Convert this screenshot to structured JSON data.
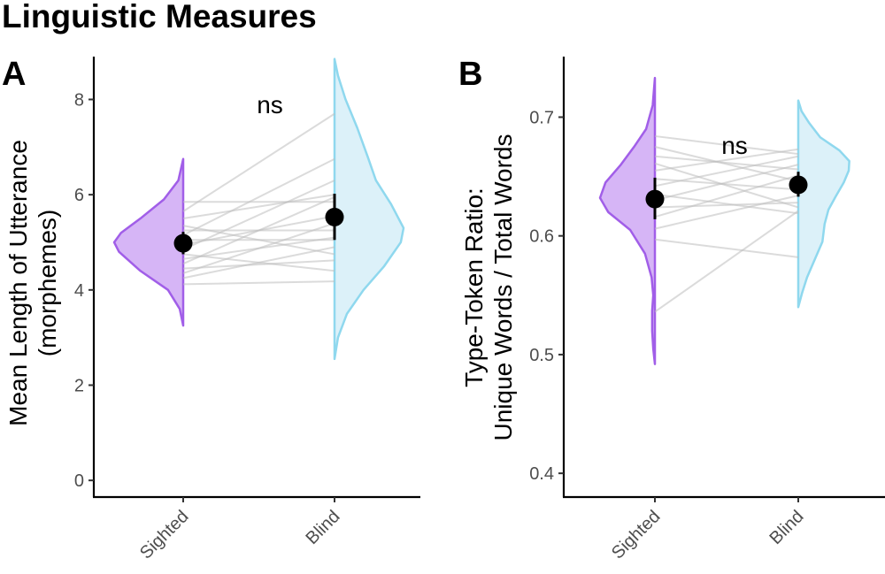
{
  "title": "Linguistic Measures",
  "colors": {
    "sighted_fill": "#cfa8f5",
    "sighted_line": "#a15ee8",
    "blind_fill": "#d6eff8",
    "blind_line": "#8fd8ee",
    "paired_line": "#bdbdbd",
    "point": "#000000"
  },
  "chart_data": [
    {
      "panel": "A",
      "type": "raincloud",
      "ylabel_lines": [
        "Mean Length of Utterance",
        "(morphemes)"
      ],
      "categories": [
        "Sighted",
        "Blind"
      ],
      "ylim": [
        -0.35,
        8.9
      ],
      "yticks": [
        0,
        2,
        4,
        6,
        8
      ],
      "tick_labels": [
        "0",
        "2",
        "4",
        "6",
        "8"
      ],
      "annotation": "ns",
      "means": [
        4.98,
        5.53
      ],
      "ci": [
        [
          4.75,
          5.22
        ],
        [
          5.05,
          6.02
        ]
      ],
      "pairs": [
        [
          4.12,
          4.18
        ],
        [
          4.25,
          4.9
        ],
        [
          4.35,
          5.4
        ],
        [
          4.45,
          4.62
        ],
        [
          4.55,
          5.95
        ],
        [
          4.65,
          5.1
        ],
        [
          4.75,
          4.4
        ],
        [
          4.85,
          6.3
        ],
        [
          4.95,
          5.55
        ],
        [
          5.05,
          5.05
        ],
        [
          5.15,
          6.75
        ],
        [
          5.25,
          5.25
        ],
        [
          5.35,
          4.75
        ],
        [
          5.5,
          6.0
        ],
        [
          5.65,
          7.7
        ],
        [
          5.85,
          5.85
        ]
      ],
      "density_sighted": [
        [
          3.25,
          0
        ],
        [
          3.6,
          0.05
        ],
        [
          4.0,
          0.22
        ],
        [
          4.4,
          0.62
        ],
        [
          4.8,
          0.93
        ],
        [
          5.0,
          1.0
        ],
        [
          5.2,
          0.9
        ],
        [
          5.5,
          0.62
        ],
        [
          5.9,
          0.28
        ],
        [
          6.3,
          0.07
        ],
        [
          6.75,
          0
        ]
      ],
      "density_blind": [
        [
          2.55,
          0
        ],
        [
          3.0,
          0.05
        ],
        [
          3.5,
          0.18
        ],
        [
          4.0,
          0.42
        ],
        [
          4.5,
          0.72
        ],
        [
          5.0,
          0.96
        ],
        [
          5.3,
          1.0
        ],
        [
          5.8,
          0.82
        ],
        [
          6.3,
          0.6
        ],
        [
          6.8,
          0.48
        ],
        [
          7.4,
          0.33
        ],
        [
          8.0,
          0.16
        ],
        [
          8.5,
          0.05
        ],
        [
          8.85,
          0
        ]
      ]
    },
    {
      "panel": "B",
      "type": "raincloud",
      "ylabel_lines": [
        "Type-Token Ratio:",
        "Unique Words / Total Words"
      ],
      "categories": [
        "Sighted",
        "Blind"
      ],
      "ylim": [
        0.38,
        0.751
      ],
      "yticks": [
        0.4,
        0.5,
        0.6,
        0.7
      ],
      "tick_labels": [
        "0.4",
        "0.5",
        "0.6",
        "0.7"
      ],
      "annotation": "ns",
      "means": [
        0.631,
        0.643
      ],
      "ci": [
        [
          0.614,
          0.649
        ],
        [
          0.633,
          0.654
        ]
      ],
      "pairs": [
        [
          0.536,
          0.621
        ],
        [
          0.597,
          0.582
        ],
        [
          0.606,
          0.634
        ],
        [
          0.616,
          0.651
        ],
        [
          0.624,
          0.628
        ],
        [
          0.63,
          0.66
        ],
        [
          0.635,
          0.619
        ],
        [
          0.642,
          0.667
        ],
        [
          0.648,
          0.639
        ],
        [
          0.655,
          0.673
        ],
        [
          0.661,
          0.624
        ],
        [
          0.667,
          0.656
        ],
        [
          0.675,
          0.646
        ],
        [
          0.684,
          0.669
        ]
      ],
      "density_sighted": [
        [
          0.492,
          0
        ],
        [
          0.505,
          0.03
        ],
        [
          0.52,
          0.05
        ],
        [
          0.537,
          0.05
        ],
        [
          0.55,
          0.03
        ],
        [
          0.565,
          0.06
        ],
        [
          0.585,
          0.18
        ],
        [
          0.605,
          0.45
        ],
        [
          0.62,
          0.85
        ],
        [
          0.632,
          1.0
        ],
        [
          0.645,
          0.9
        ],
        [
          0.66,
          0.62
        ],
        [
          0.675,
          0.38
        ],
        [
          0.69,
          0.16
        ],
        [
          0.71,
          0.04
        ],
        [
          0.733,
          0
        ]
      ],
      "density_blind": [
        [
          0.54,
          0
        ],
        [
          0.552,
          0.07
        ],
        [
          0.565,
          0.16
        ],
        [
          0.58,
          0.3
        ],
        [
          0.595,
          0.44
        ],
        [
          0.61,
          0.48
        ],
        [
          0.622,
          0.55
        ],
        [
          0.633,
          0.68
        ],
        [
          0.645,
          0.83
        ],
        [
          0.655,
          0.92
        ],
        [
          0.663,
          0.93
        ],
        [
          0.672,
          0.75
        ],
        [
          0.683,
          0.4
        ],
        [
          0.695,
          0.2
        ],
        [
          0.705,
          0.06
        ],
        [
          0.714,
          0
        ]
      ]
    }
  ]
}
